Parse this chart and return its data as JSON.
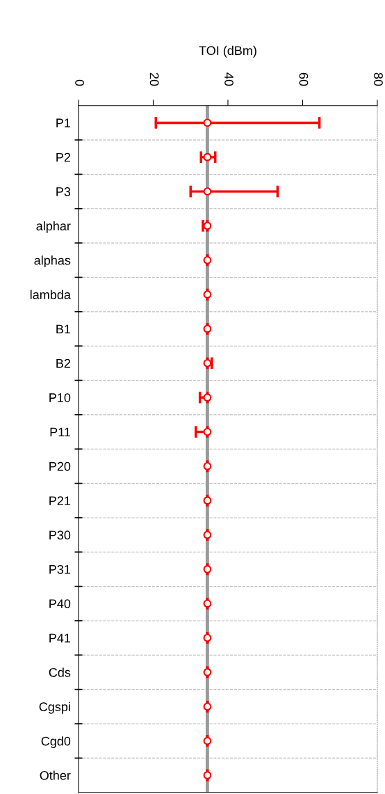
{
  "chart_data": {
    "type": "scatter",
    "orientation": "horizontal",
    "xlabel": "TOI (dBm)",
    "categories": [
      "P1",
      "P2",
      "P3",
      "alphar",
      "alphas",
      "lambda",
      "B1",
      "B2",
      "P10",
      "P11",
      "P20",
      "P21",
      "P30",
      "P31",
      "P40",
      "P41",
      "Cds",
      "Cgspi",
      "Cgd0",
      "Other"
    ],
    "values": [
      34.5,
      34.5,
      34.5,
      34.5,
      34.5,
      34.5,
      34.5,
      34.5,
      34.5,
      34.5,
      34.5,
      34.5,
      34.5,
      34.5,
      34.5,
      34.5,
      34.5,
      34.5,
      34.5,
      34.5
    ],
    "errors": [
      [
        20.7,
        64.5
      ],
      [
        32.8,
        36.6
      ],
      [
        30.0,
        53.3
      ],
      [
        33.3,
        34.5
      ],
      null,
      null,
      null,
      [
        34.5,
        35.7
      ],
      [
        32.5,
        34.5
      ],
      [
        31.4,
        34.5
      ],
      null,
      null,
      null,
      null,
      null,
      null,
      null,
      null,
      null,
      null
    ],
    "color": "#ff0000",
    "marker": "circle",
    "xlim": [
      0,
      80
    ],
    "xticks": [
      0,
      20,
      40,
      60,
      80
    ],
    "ref_lines": [
      {
        "axis": "x",
        "value": 34.5,
        "color": "#999999"
      }
    ],
    "grid": "y"
  }
}
